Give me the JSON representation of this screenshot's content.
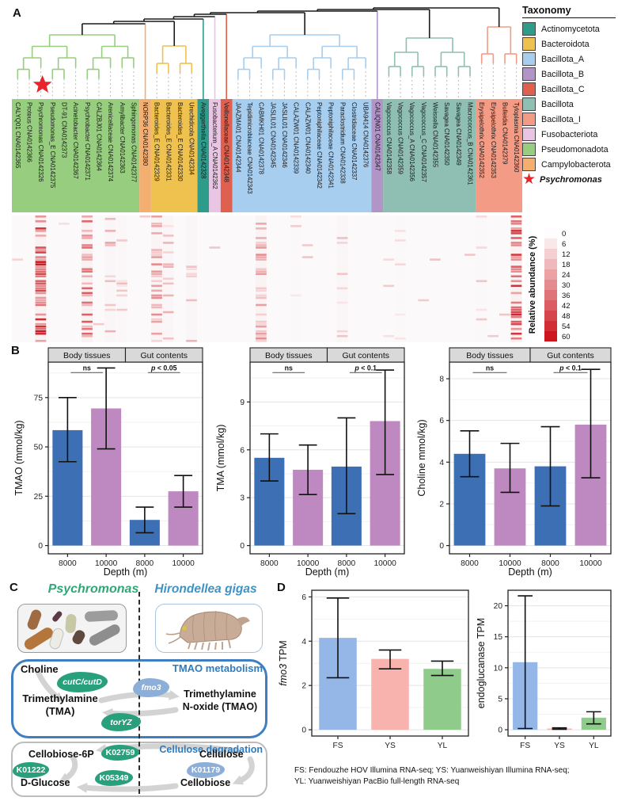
{
  "figure": {
    "panel_a_label": "A",
    "panel_b_label": "B",
    "panel_c_label": "C",
    "panel_d_label": "D"
  },
  "taxonomy_legend": {
    "title": "Taxonomy",
    "items": [
      {
        "label": "Actinomycetota",
        "color": "#2F9B8A"
      },
      {
        "label": "Bacteroidota",
        "color": "#EFC14F"
      },
      {
        "label": "Bacillota_A",
        "color": "#A7CDEF"
      },
      {
        "label": "Bacillota_B",
        "color": "#B295C7"
      },
      {
        "label": "Bacillota_C",
        "color": "#E0604F"
      },
      {
        "label": "Bacillota",
        "color": "#8FBEB3"
      },
      {
        "label": "Bacillota_I",
        "color": "#F39B85"
      },
      {
        "label": "Fusobacteriota",
        "color": "#E9C5E4"
      },
      {
        "label": "Pseudomonadota",
        "color": "#97CD7F"
      },
      {
        "label": "Campylobacterota",
        "color": "#F4AE70"
      }
    ],
    "star": {
      "label": "Psychromonas",
      "color": "#E8242C"
    }
  },
  "phylogeny": {
    "star_leaf": "Psychromonas CNA0142326",
    "leaves": [
      {
        "label": "CALYQ01 CNA0142365",
        "phylum": "Pseudomonadota"
      },
      {
        "label": "Proteus CNA0142366",
        "phylum": "Pseudomonadota"
      },
      {
        "label": "Psychromonas CNA0142326",
        "phylum": "Pseudomonadota"
      },
      {
        "label": "Pseudomonas_E CNA0142375",
        "phylum": "Pseudomonadota"
      },
      {
        "label": "DT-91 CNA0142373",
        "phylum": "Pseudomonadota"
      },
      {
        "label": "Acinetobacter CNA0142367",
        "phylum": "Pseudomonadota"
      },
      {
        "label": "Psychrobacter CNA0142371",
        "phylum": "Pseudomonadota"
      },
      {
        "label": "CALZBJ01 CNA0142364",
        "phylum": "Pseudomonadota"
      },
      {
        "label": "Arenicellaceae CNA0142374",
        "phylum": "Pseudomonadota"
      },
      {
        "label": "Amylibacter CNA0142363",
        "phylum": "Pseudomonadota"
      },
      {
        "label": "Sphingomonas CNA0142377",
        "phylum": "Pseudomonadota"
      },
      {
        "label": "NORP36 CNA0142380",
        "phylum": "Campylobacterota"
      },
      {
        "label": "Bacteroides_E CNA0142329",
        "phylum": "Bacteroidota"
      },
      {
        "label": "Bacteroides_E CNA0142331",
        "phylum": "Bacteroidota"
      },
      {
        "label": "Bacteroides_E CNA0142330",
        "phylum": "Bacteroidota"
      },
      {
        "label": "Urechidicola CNA0142334",
        "phylum": "Bacteroidota"
      },
      {
        "label": "Aveggerthella CNA0142328",
        "phylum": "Actinomycetota"
      },
      {
        "label": "Fusobacterium_A CNA0142362",
        "phylum": "Fusobacteriota"
      },
      {
        "label": "Veillonellaceae CNA0142348",
        "phylum": "Bacillota_C"
      },
      {
        "label": "JAAZMA01 CNA0142344",
        "phylum": "Bacillota_A"
      },
      {
        "label": "Tepidimicrobiaceae CNA0142343",
        "phylum": "Bacillota_A"
      },
      {
        "label": "CABMKH01 CNA0142378",
        "phylum": "Bacillota_A"
      },
      {
        "label": "JASLIL01 CNA0142345",
        "phylum": "Bacillota_A"
      },
      {
        "label": "JASLIL01 CNA0142346",
        "phylum": "Bacillota_A"
      },
      {
        "label": "CALAZW01 CNA0142339",
        "phylum": "Bacillota_A"
      },
      {
        "label": "CALAZW01 CNA0142340",
        "phylum": "Bacillota_A"
      },
      {
        "label": "Peptoniphilaceae CNA0142342",
        "phylum": "Bacillota_A"
      },
      {
        "label": "Peptoniphilaceae CNA0142341",
        "phylum": "Bacillota_A"
      },
      {
        "label": "Paraclostridium CNA0142338",
        "phylum": "Bacillota_A"
      },
      {
        "label": "Clostridiaceae CNA0142337",
        "phylum": "Bacillota_A"
      },
      {
        "label": "UBA9414 CNA0142376",
        "phylum": "Bacillota_A"
      },
      {
        "label": "CALIQN01 CNA0142347",
        "phylum": "Bacillota_B"
      },
      {
        "label": "Vagococcus CNA0142358",
        "phylum": "Bacillota"
      },
      {
        "label": "Vagococcus CNA0142359",
        "phylum": "Bacillota"
      },
      {
        "label": "Vagococcus_A CNA0142356",
        "phylum": "Bacillota"
      },
      {
        "label": "Vagococcus_C CNA0142357",
        "phylum": "Bacillota"
      },
      {
        "label": "Weissella CNA0142355",
        "phylum": "Bacillota"
      },
      {
        "label": "Savagea CNA0142350",
        "phylum": "Bacillota"
      },
      {
        "label": "Savagea CNA0142349",
        "phylum": "Bacillota"
      },
      {
        "label": "Macrococcus_B CNA0142361",
        "phylum": "Bacillota"
      },
      {
        "label": "Erysipelothrix CNA0142352",
        "phylum": "Bacillota_I"
      },
      {
        "label": "Erysipelothrix CNA0142353",
        "phylum": "Bacillota_I"
      },
      {
        "label": "Bulleidia CNA0142379",
        "phylum": "Bacillota_I"
      },
      {
        "label": "Tyloplasma CNA0142360",
        "phylum": "Bacillota_I"
      }
    ]
  },
  "abundance_legend": {
    "title": "Relative abundance (%)",
    "ticks": [
      0,
      6,
      12,
      18,
      24,
      30,
      36,
      42,
      48,
      54,
      60
    ],
    "low_color": "#FFFFFF",
    "high_color": "#CB161E"
  },
  "heatmap": {
    "seed": 42,
    "rows": 53,
    "sparse_density": 0.015,
    "hot_columns": [
      {
        "col": 2,
        "density": 0.62,
        "strength": 1.0
      },
      {
        "col": 6,
        "density": 0.5,
        "strength": 0.72
      },
      {
        "col": 8,
        "density": 0.2,
        "strength": 0.42
      },
      {
        "col": 9,
        "density": 0.1,
        "strength": 0.3
      },
      {
        "col": 12,
        "density": 0.4,
        "strength": 0.5
      },
      {
        "col": 13,
        "density": 0.16,
        "strength": 0.35
      },
      {
        "col": 15,
        "density": 0.18,
        "strength": 0.35
      },
      {
        "col": 21,
        "density": 0.45,
        "strength": 0.5
      },
      {
        "col": 24,
        "density": 0.08,
        "strength": 0.25
      },
      {
        "col": 28,
        "density": 0.26,
        "strength": 0.3
      },
      {
        "col": 33,
        "density": 0.06,
        "strength": 0.2
      },
      {
        "col": 40,
        "density": 0.08,
        "strength": 0.3
      },
      {
        "col": 43,
        "density": 0.62,
        "strength": 1.0
      }
    ]
  },
  "chart_data": [
    {
      "id": "tmao",
      "type": "bar",
      "facets": [
        "Body tissues",
        "Gut contents"
      ],
      "categories": [
        "8000",
        "10000",
        "8000",
        "10000"
      ],
      "values": [
        58.5,
        69.5,
        13,
        27.5
      ],
      "error_low": [
        42.5,
        49,
        6.5,
        19.5
      ],
      "error_high": [
        75,
        90,
        19.5,
        35.5
      ],
      "ylabel": "TMAO (mmol/kg)",
      "xlabel": "Depth (m)",
      "yticks": [
        0,
        25,
        50,
        75
      ],
      "ylim": [
        0,
        93
      ],
      "annotations": [
        {
          "facet": "Body tissues",
          "text": "ns"
        },
        {
          "facet": "Gut contents",
          "text": "p < 0.05"
        }
      ],
      "bar_colors": [
        "#3D6FB4",
        "#BE88C0",
        "#3D6FB4",
        "#BE88C0"
      ]
    },
    {
      "id": "tma",
      "type": "bar",
      "facets": [
        "Body tissues",
        "Gut contents"
      ],
      "categories": [
        "8000",
        "10000",
        "8000",
        "10000"
      ],
      "values": [
        5.5,
        4.75,
        4.95,
        7.8
      ],
      "error_low": [
        4.05,
        3.2,
        2.0,
        4.45
      ],
      "error_high": [
        7.0,
        6.3,
        8.0,
        11.0
      ],
      "ylabel": "TMA (mmol/kg)",
      "xlabel": "Depth (m)",
      "yticks": [
        0,
        3,
        6,
        9
      ],
      "ylim": [
        0,
        11.5
      ],
      "annotations": [
        {
          "facet": "Body tissues",
          "text": "ns"
        },
        {
          "facet": "Gut contents",
          "text": "p < 0.1"
        }
      ],
      "bar_colors": [
        "#3D6FB4",
        "#BE88C0",
        "#3D6FB4",
        "#BE88C0"
      ]
    },
    {
      "id": "choline",
      "type": "bar",
      "facets": [
        "Body tissues",
        "Gut contents"
      ],
      "categories": [
        "8000",
        "10000",
        "8000",
        "10000"
      ],
      "values": [
        4.4,
        3.7,
        3.8,
        5.8
      ],
      "error_low": [
        3.3,
        2.55,
        1.9,
        3.25
      ],
      "error_high": [
        5.5,
        4.9,
        5.7,
        8.45
      ],
      "ylabel": "Choline mmol/kg)",
      "xlabel": "Depth (m)",
      "yticks": [
        0,
        2,
        4,
        6,
        8
      ],
      "ylim": [
        0,
        8.8
      ],
      "annotations": [
        {
          "facet": "Body tissues",
          "text": "ns"
        },
        {
          "facet": "Gut contents",
          "text": "p < 0.1"
        }
      ],
      "bar_colors": [
        "#3D6FB4",
        "#BE88C0",
        "#3D6FB4",
        "#BE88C0"
      ]
    },
    {
      "id": "fmo3",
      "type": "bar",
      "categories": [
        "FS",
        "YS",
        "YL"
      ],
      "values": [
        4.15,
        3.2,
        2.75
      ],
      "error_low": [
        2.35,
        2.75,
        2.45
      ],
      "error_high": [
        5.95,
        3.6,
        3.1
      ],
      "ylabel": "fmo3 TPM",
      "ylabel_italic_prefix": "fmo3",
      "ylabel_rest": " TPM",
      "yticks": [
        0,
        2,
        4,
        6
      ],
      "ylim": [
        0,
        6.3
      ],
      "bar_colors": [
        "#94B7E8",
        "#F9B3AE",
        "#8FCB8B"
      ]
    },
    {
      "id": "endoglucanase",
      "type": "bar",
      "categories": [
        "FS",
        "YS",
        "YL"
      ],
      "values": [
        10.9,
        0.2,
        1.95
      ],
      "error_low": [
        0.2,
        0.08,
        0.95
      ],
      "error_high": [
        21.6,
        0.3,
        2.9
      ],
      "ylabel": "endoglucanase TPM",
      "yticks": [
        0,
        5,
        10,
        15,
        20
      ],
      "ylim": [
        0,
        22.5
      ],
      "bar_colors": [
        "#94B7E8",
        "#F9B3AE",
        "#8FCB8B"
      ]
    },
    {
      "id": "relative_abundance_heatmap",
      "type": "heatmap",
      "x": "44 taxa in phylogenetic tree leaf order",
      "y": "amphipod samples (rows)",
      "value_label": "Relative abundance (%)",
      "scale_ticks": [
        0,
        6,
        12,
        18,
        24,
        30,
        36,
        42,
        48,
        54,
        60
      ],
      "high_abundance_columns": [
        "Psychromonas CNA0142326",
        "Psychrobacter CNA0142371",
        "Bacteroides_E CNA0142329",
        "CABMKH01 CNA0142378",
        "Tyloplasma CNA0142360"
      ]
    }
  ],
  "panel_c": {
    "left_title": "Psychromonas",
    "right_title": "Hirondellea gigas",
    "tmao_box_title": "TMAO metabolism",
    "cellulose_box_title": "Cellulose degradation",
    "choline": "Choline",
    "tma_line1": "Trimethylamine",
    "tma_line2": "(TMA)",
    "tmao_line1": "Trimethylamine",
    "tmao_line2": "N-oxide (TMAO)",
    "cellobiose6p": "Cellobiose-6P",
    "cellulose": "Cellulose",
    "cellobiose": "Cellobiose",
    "dglucose": "D-Glucose",
    "genes": {
      "cutc": "cutC/cutD",
      "fmo3": "fmo3",
      "toryz": "torYZ",
      "k02759": "K02759",
      "k01179": "K01179",
      "k01222": "K01222",
      "k05349": "K05349"
    },
    "colors": {
      "green_title": "#2FA876",
      "blue_title": "#3E93C6",
      "gene_green": "#29A07C",
      "gene_blue": "#8BAFD8",
      "box_blue": "#3F7FC1",
      "label_blue": "#2E7CC0"
    }
  },
  "panel_d_caption": {
    "line1": "FS: Fendouzhe HOV Illumina RNA-seq; YS: Yuanweishiyan Illumina RNA-seq;",
    "line2": "YL: Yuanweishiyan PacBio full-length RNA-seq"
  }
}
